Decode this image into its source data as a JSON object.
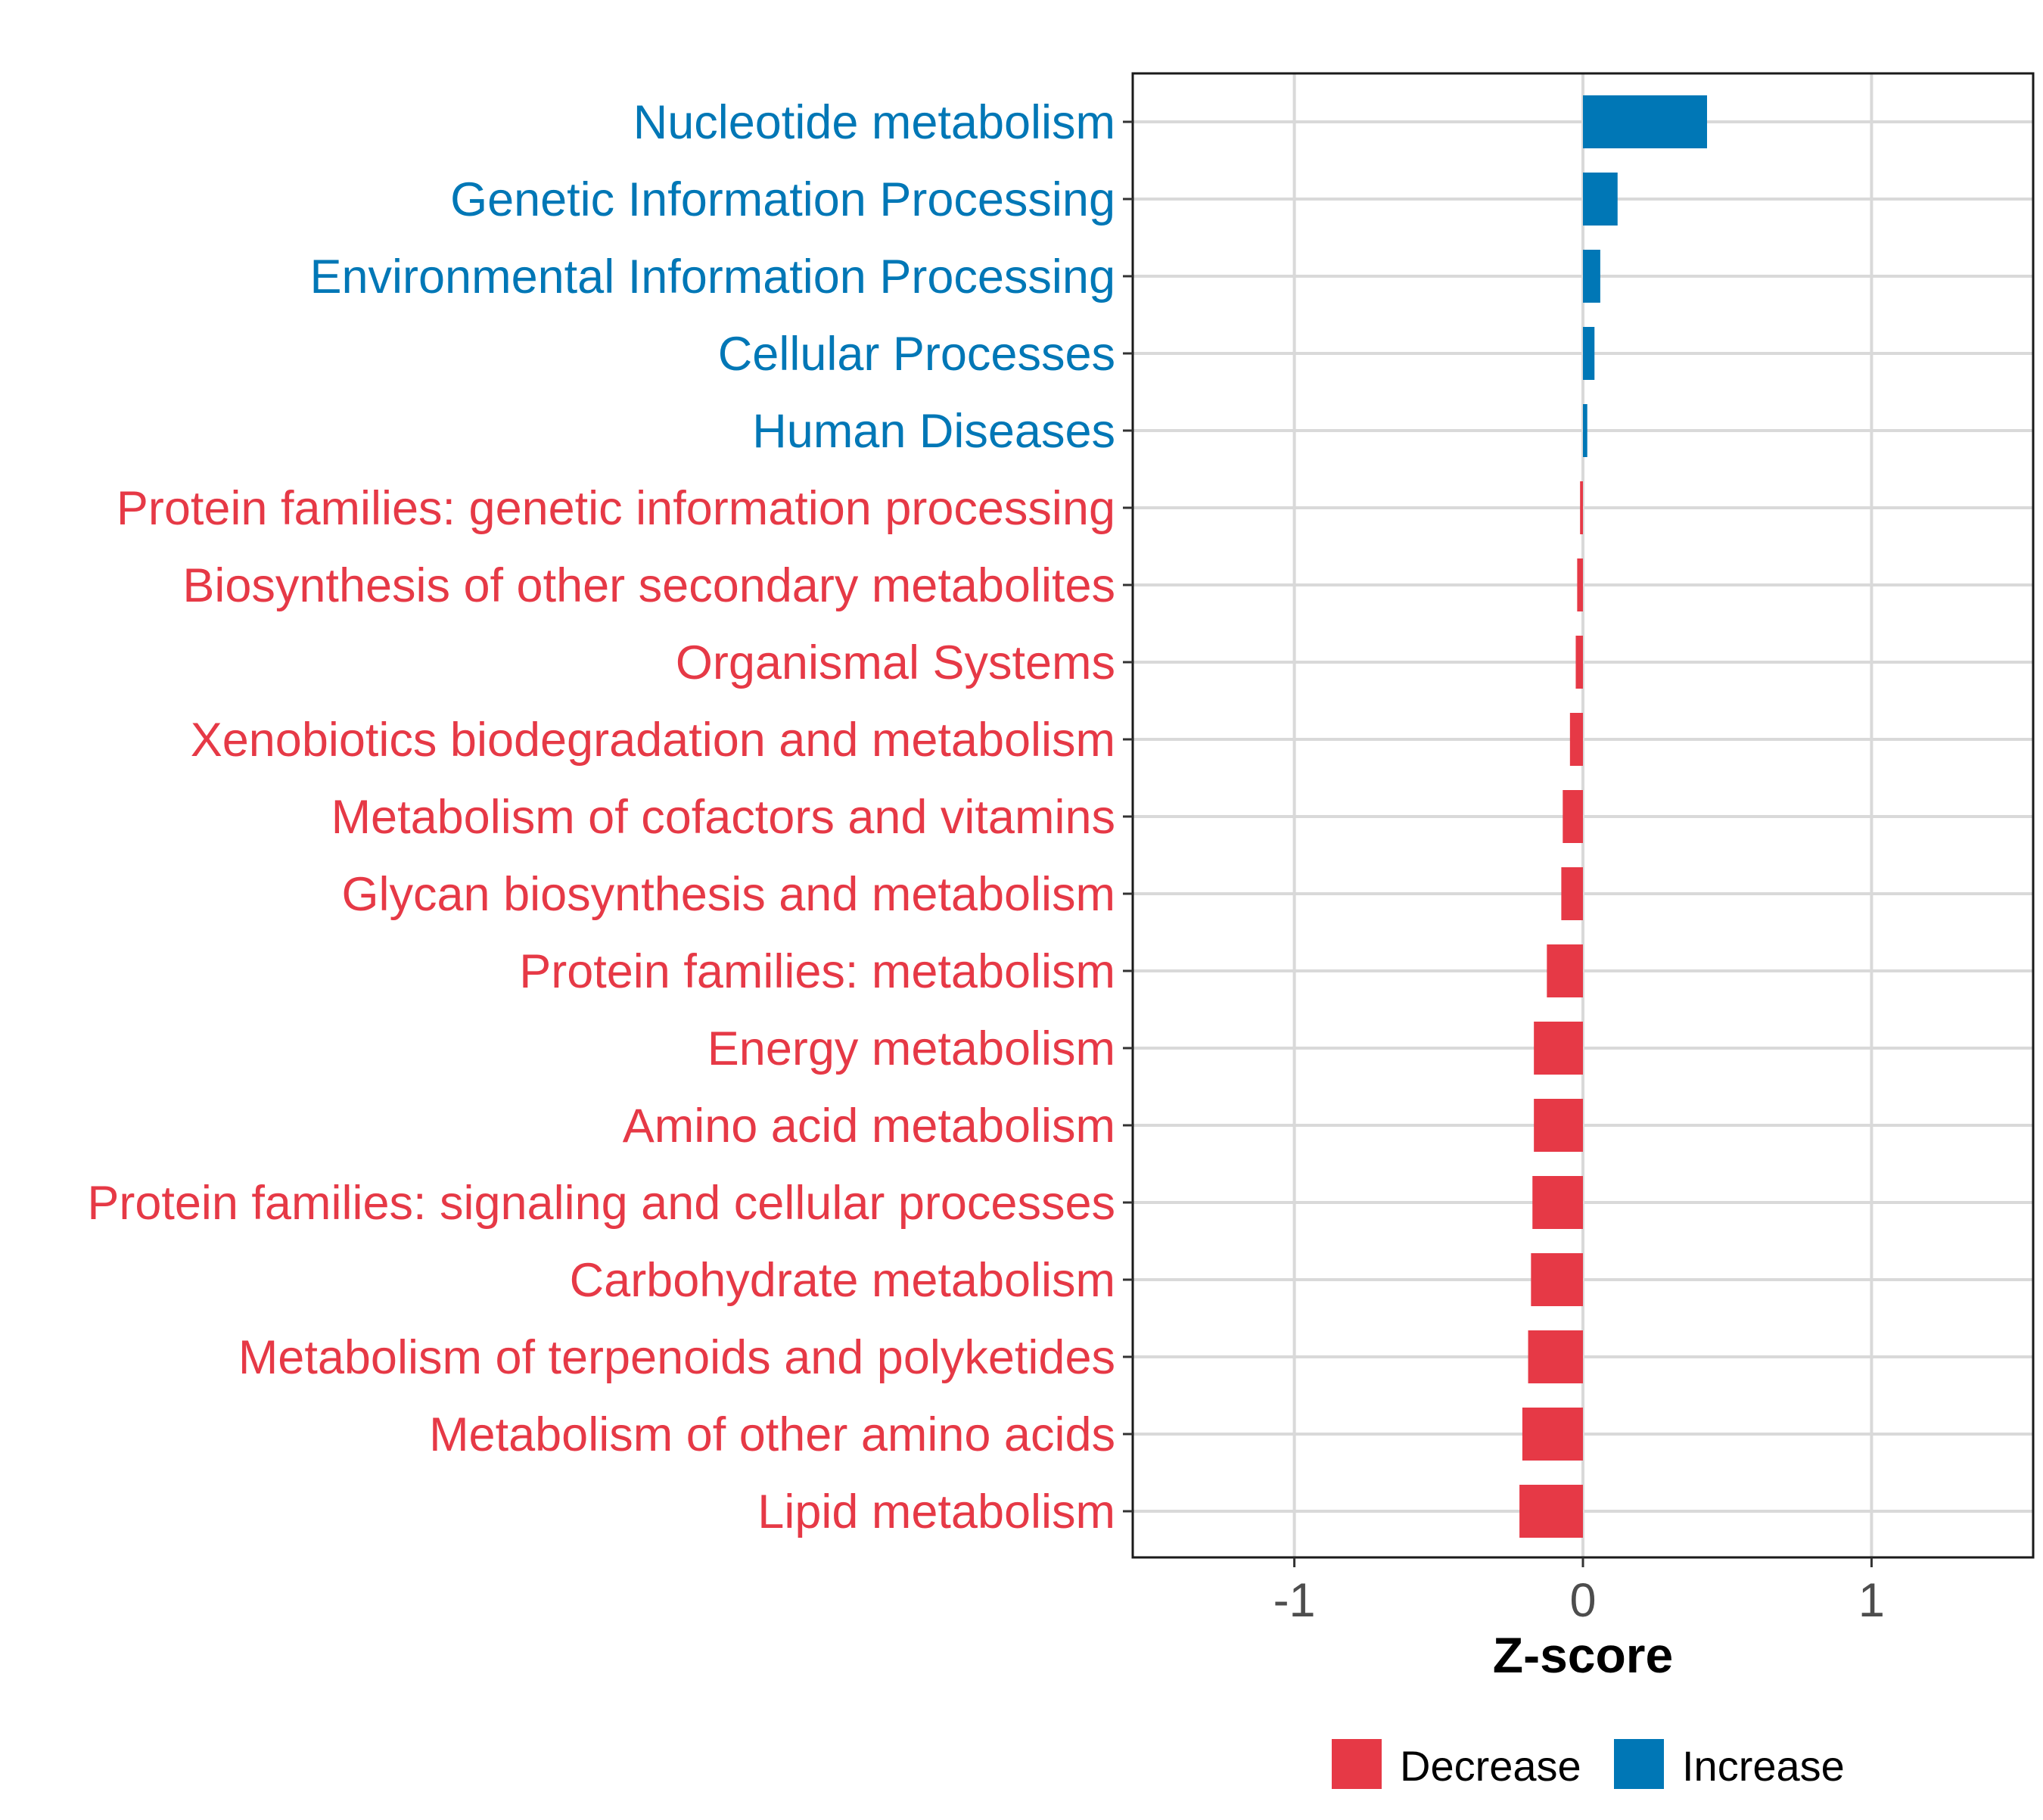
{
  "chart_data": {
    "type": "bar",
    "orientation": "horizontal",
    "title": "",
    "xlabel": "Z-score",
    "ylabel": "",
    "xlim": [
      -1.56,
      1.56
    ],
    "xticks": [
      -1,
      0,
      1
    ],
    "xtick_labels": [
      "-1",
      "0",
      "1"
    ],
    "grid": true,
    "legend_position": "bottom",
    "colors": {
      "Decrease": "#E63946",
      "Increase": "#0077B6"
    },
    "legend": [
      {
        "label": "Decrease",
        "color": "#E63946"
      },
      {
        "label": "Increase",
        "color": "#0077B6"
      }
    ],
    "categories": [
      "Nucleotide metabolism",
      "Genetic Information Processing",
      "Environmental Information Processing",
      "Cellular Processes",
      "Human Diseases",
      "Protein families: genetic information processing",
      "Biosynthesis of other secondary metabolites",
      "Organismal Systems",
      "Xenobiotics biodegradation and metabolism",
      "Metabolism of cofactors and vitamins",
      "Glycan biosynthesis and metabolism",
      "Protein families: metabolism",
      "Energy metabolism",
      "Amino acid metabolism",
      "Protein families: signaling and cellular processes",
      "Carbohydrate metabolism",
      "Metabolism of terpenoids and polyketides",
      "Metabolism of other amino acids",
      "Lipid metabolism"
    ],
    "values": [
      0.43,
      0.12,
      0.06,
      0.04,
      0.015,
      -0.01,
      -0.02,
      -0.025,
      -0.045,
      -0.07,
      -0.075,
      -0.125,
      -0.17,
      -0.17,
      -0.175,
      -0.18,
      -0.19,
      -0.21,
      -0.22
    ],
    "groups": [
      "Increase",
      "Increase",
      "Increase",
      "Increase",
      "Increase",
      "Decrease",
      "Decrease",
      "Decrease",
      "Decrease",
      "Decrease",
      "Decrease",
      "Decrease",
      "Decrease",
      "Decrease",
      "Decrease",
      "Decrease",
      "Decrease",
      "Decrease",
      "Decrease"
    ]
  }
}
